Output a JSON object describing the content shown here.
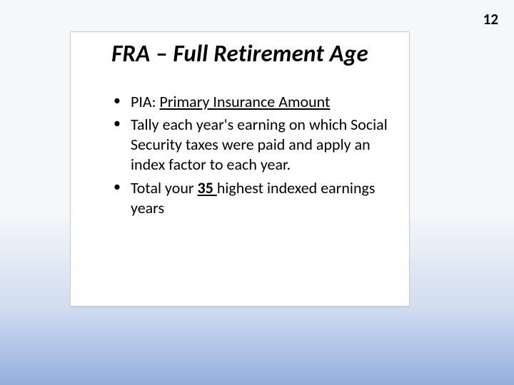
{
  "page_number": "12",
  "slide": {
    "title": "FRA – Full Retirement Age",
    "background_color": "#ffffff",
    "border_color": "#c9c9c9",
    "title_fontsize": 33,
    "title_style": "bold italic",
    "bullet_fontsize": 22,
    "bullets": [
      {
        "prefix": "PIA: ",
        "underlined": "Primary Insurance Amount",
        "suffix": ""
      },
      {
        "prefix": "Tally each year's earning on which Social Security taxes were paid and apply an index factor to each year.",
        "underlined": "",
        "suffix": ""
      },
      {
        "prefix": "Total your ",
        "underlined_bold": "35 ",
        "suffix": "highest indexed earnings years"
      }
    ]
  },
  "gradient": {
    "top_color": "#f5f7fa",
    "mid_color": "#d0dcf0",
    "bottom_color": "#94b0dd"
  }
}
